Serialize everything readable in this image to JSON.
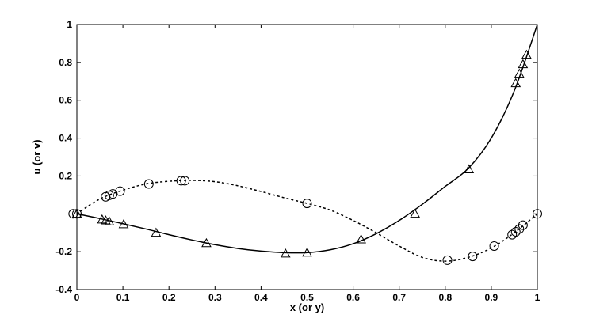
{
  "chart_data": {
    "type": "line",
    "title": "",
    "xlabel": "x (or y)",
    "ylabel": "u (or v)",
    "xlim": [
      0,
      1
    ],
    "ylim": [
      -0.4,
      1
    ],
    "xticks": [
      0,
      0.1,
      0.2,
      0.3,
      0.4,
      0.5,
      0.6,
      0.7,
      0.8,
      0.9,
      1
    ],
    "xtick_labels": [
      "0",
      "0.1",
      "0.2",
      "0.3",
      "0.4",
      "0.5",
      "0.6",
      "0.7",
      "0.8",
      "0.9",
      "1"
    ],
    "yticks": [
      -0.4,
      -0.2,
      0,
      0.2,
      0.4,
      0.6,
      0.8,
      1
    ],
    "ytick_labels": [
      "-0.4",
      "-0.2",
      "",
      "0.2",
      "0.4",
      "0.6",
      "0.8",
      "1"
    ],
    "grid": false,
    "legend": "none",
    "series": [
      {
        "style": "solid",
        "color": "#000000",
        "curve": [
          [
            0,
            0
          ],
          [
            0.05,
            -0.025
          ],
          [
            0.1,
            -0.052
          ],
          [
            0.15,
            -0.08
          ],
          [
            0.2,
            -0.11
          ],
          [
            0.25,
            -0.138
          ],
          [
            0.3,
            -0.163
          ],
          [
            0.35,
            -0.183
          ],
          [
            0.4,
            -0.197
          ],
          [
            0.45,
            -0.205
          ],
          [
            0.5,
            -0.205
          ],
          [
            0.55,
            -0.19
          ],
          [
            0.6,
            -0.158
          ],
          [
            0.65,
            -0.105
          ],
          [
            0.7,
            -0.035
          ],
          [
            0.75,
            0.05
          ],
          [
            0.8,
            0.145
          ],
          [
            0.85,
            0.24
          ],
          [
            0.9,
            0.4
          ],
          [
            0.95,
            0.65
          ],
          [
            1,
            1
          ]
        ],
        "markers": {
          "shape": "triangle",
          "points": [
            [
              0,
              0
            ],
            [
              0.0547,
              -0.03
            ],
            [
              0.0625,
              -0.035
            ],
            [
              0.0703,
              -0.04
            ],
            [
              0.1016,
              -0.055
            ],
            [
              0.1719,
              -0.1
            ],
            [
              0.2813,
              -0.155
            ],
            [
              0.4531,
              -0.21
            ],
            [
              0.5,
              -0.205
            ],
            [
              0.6172,
              -0.135
            ],
            [
              0.7344,
              0.0
            ],
            [
              0.8516,
              0.235
            ],
            [
              0.9531,
              0.69
            ],
            [
              0.9609,
              0.74
            ],
            [
              0.9688,
              0.79
            ],
            [
              0.9766,
              0.84
            ]
          ]
        }
      },
      {
        "style": "dotted",
        "color": "#000000",
        "curve": [
          [
            0,
            0
          ],
          [
            0.03,
            0.05
          ],
          [
            0.06,
            0.09
          ],
          [
            0.1,
            0.125
          ],
          [
            0.15,
            0.158
          ],
          [
            0.2,
            0.172
          ],
          [
            0.25,
            0.177
          ],
          [
            0.3,
            0.17
          ],
          [
            0.35,
            0.148
          ],
          [
            0.4,
            0.118
          ],
          [
            0.45,
            0.085
          ],
          [
            0.5,
            0.055
          ],
          [
            0.55,
            0.02
          ],
          [
            0.6,
            -0.035
          ],
          [
            0.65,
            -0.1
          ],
          [
            0.7,
            -0.17
          ],
          [
            0.75,
            -0.23
          ],
          [
            0.8,
            -0.25
          ],
          [
            0.85,
            -0.23
          ],
          [
            0.9,
            -0.18
          ],
          [
            0.95,
            -0.1
          ],
          [
            1,
            0
          ]
        ],
        "markers": {
          "shape": "circle",
          "points": [
            [
              -0.008,
              0
            ],
            [
              0.0,
              0
            ],
            [
              0.0625,
              0.09
            ],
            [
              0.0703,
              0.098
            ],
            [
              0.0781,
              0.105
            ],
            [
              0.0938,
              0.12
            ],
            [
              0.1563,
              0.158
            ],
            [
              0.2266,
              0.175
            ],
            [
              0.2344,
              0.175
            ],
            [
              0.5,
              0.055
            ],
            [
              0.8047,
              -0.245
            ],
            [
              0.8594,
              -0.225
            ],
            [
              0.9063,
              -0.17
            ],
            [
              0.9453,
              -0.11
            ],
            [
              0.9531,
              -0.095
            ],
            [
              0.9609,
              -0.08
            ],
            [
              0.9688,
              -0.06
            ],
            [
              1,
              0
            ]
          ]
        }
      }
    ]
  }
}
